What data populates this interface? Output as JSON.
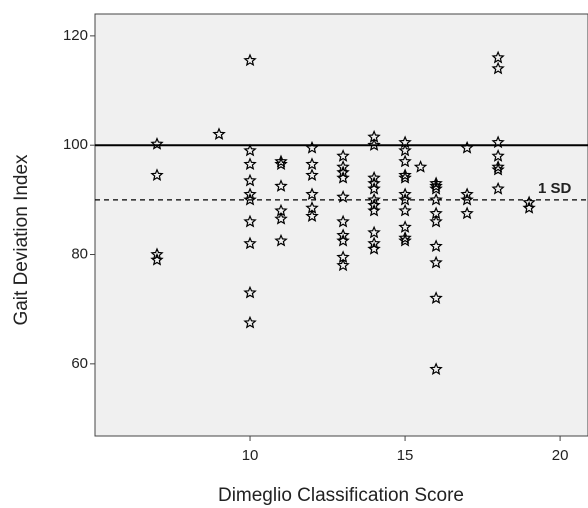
{
  "chart_data": {
    "type": "scatter",
    "x_label": "Dimeglio Classification Score",
    "y_label": "Gait Deviation Index",
    "xlim": [
      5,
      20.9
    ],
    "ylim": [
      46.8,
      124
    ],
    "xticks": [
      10,
      15,
      20
    ],
    "yticks": [
      60,
      80,
      100,
      120
    ],
    "background": "#f0f0f0",
    "marker": "star",
    "color": "#000000",
    "reference_lines": [
      {
        "value": 100,
        "style": "solid"
      },
      {
        "value": 90,
        "style": "dashed",
        "label": "1 SD"
      }
    ],
    "x": [
      7,
      7,
      7,
      7,
      9,
      10,
      10,
      10,
      10,
      10,
      10,
      10,
      10,
      10,
      10,
      11,
      11,
      11,
      11,
      11,
      11,
      12,
      12,
      12,
      12,
      12,
      12,
      13,
      13,
      13,
      13,
      13,
      13,
      13,
      13,
      13,
      13,
      14,
      14,
      14,
      14,
      14,
      14,
      14,
      14,
      14,
      14,
      14,
      15,
      15,
      15,
      15,
      15,
      15,
      15,
      15,
      15,
      15,
      15,
      15.5,
      16,
      16,
      16,
      16,
      16,
      16,
      16,
      16,
      16,
      16,
      17,
      17,
      17,
      17,
      18,
      18,
      18,
      18,
      18,
      18,
      18,
      19,
      19
    ],
    "y": [
      100.2,
      94.5,
      80,
      79,
      102,
      115.5,
      99,
      96.5,
      93.5,
      91,
      90,
      86,
      82,
      73,
      67.5,
      97,
      96.5,
      92.5,
      88,
      86.5,
      82.5,
      99.5,
      96.5,
      94.5,
      91,
      88.5,
      87,
      98,
      96,
      95,
      94,
      90.5,
      86,
      83.5,
      82.5,
      79.5,
      78,
      101.5,
      100,
      94,
      93,
      92,
      90,
      89,
      88,
      84,
      82,
      81,
      100.5,
      99,
      97,
      94.5,
      94,
      91,
      90,
      88,
      85,
      83,
      82.5,
      96,
      93,
      92.5,
      92,
      90,
      87.5,
      86,
      81.5,
      78.5,
      72,
      59,
      99.5,
      91,
      90,
      87.5,
      116,
      114,
      100.5,
      98,
      96,
      95.5,
      92,
      89.5,
      88.5
    ]
  }
}
